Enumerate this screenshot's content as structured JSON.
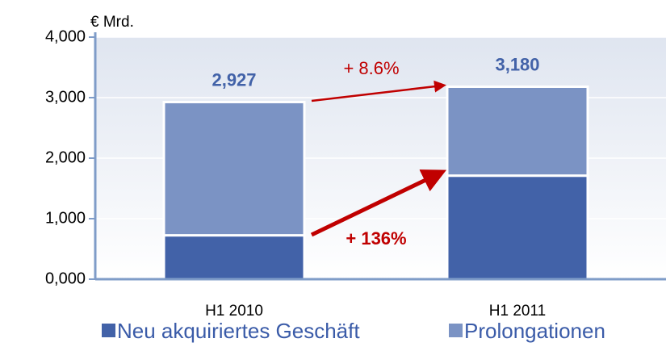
{
  "chart_data": {
    "type": "stacked_bar",
    "y_label": "€ Mrd.",
    "categories": [
      "H1 2010",
      "H1 2011"
    ],
    "series": [
      {
        "name": "Neu akquiriertes Geschäft",
        "color": "#4262a8",
        "values": [
          725,
          1711
        ]
      },
      {
        "name": "Prolongationen",
        "color": "#7b93c4",
        "values": [
          2202,
          1469
        ]
      }
    ],
    "totals": [
      2927,
      3180
    ],
    "total_labels": [
      "2,927",
      "3,180"
    ],
    "annotations": [
      {
        "text": "+ 8.6%"
      },
      {
        "text": "+ 136%"
      }
    ],
    "ylim": [
      0,
      4000
    ],
    "yticks": [
      {
        "value": 0,
        "label": "0,000"
      },
      {
        "value": 1000,
        "label": "1,000"
      },
      {
        "value": 2000,
        "label": "2,000"
      },
      {
        "value": 3000,
        "label": "3,000"
      },
      {
        "value": 4000,
        "label": "4,000"
      }
    ],
    "grid": true
  }
}
